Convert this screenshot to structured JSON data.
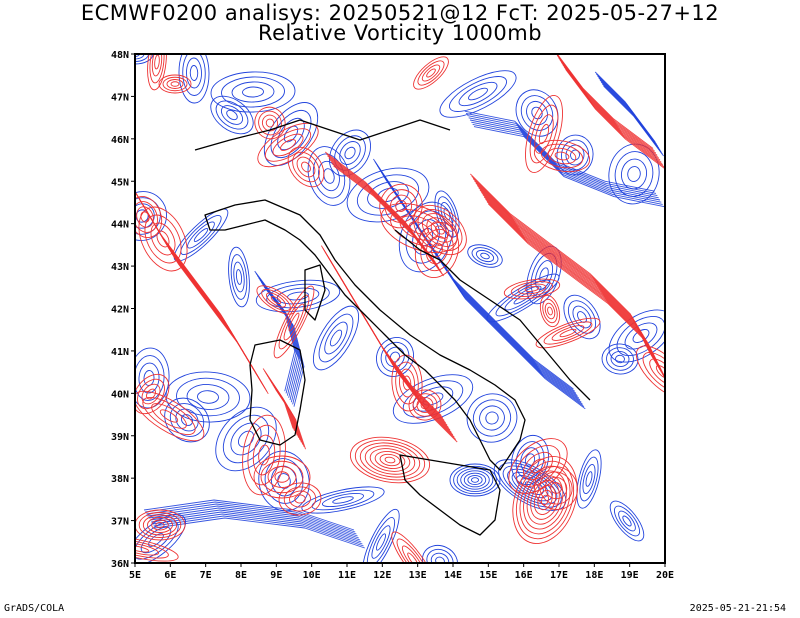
{
  "title_line1": "ECMWF0200 analisys: 20250521@12 FcT: 2025-05-27+12",
  "title_line2": "Relative Vorticity 1000mb",
  "lat_labels": [
    "48N",
    "47N",
    "46N",
    "45N",
    "44N",
    "43N",
    "42N",
    "41N",
    "40N",
    "39N",
    "38N",
    "37N",
    "36N"
  ],
  "lon_labels": [
    "5E",
    "6E",
    "7E",
    "8E",
    "9E",
    "10E",
    "11E",
    "12E",
    "13E",
    "14E",
    "15E",
    "16E",
    "17E",
    "18E",
    "19E",
    "20E"
  ],
  "footer_left": "GrADS/COLA",
  "footer_right": "2025-05-21-21:54",
  "colors": {
    "positive": "#ee3333",
    "negative": "#2244dd",
    "coast": "#000000",
    "background": "#ffffff"
  },
  "extent": {
    "lon_min": 5,
    "lon_max": 20,
    "lat_min": 36,
    "lat_max": 48
  }
}
